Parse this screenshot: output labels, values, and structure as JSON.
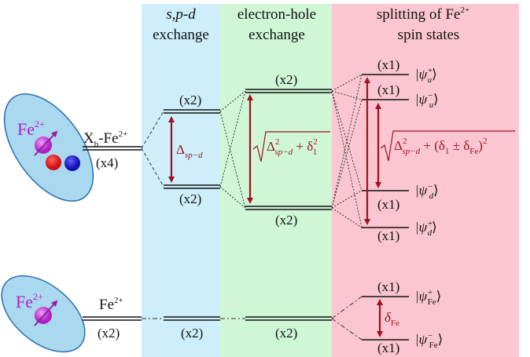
{
  "headers": [
    [
      "s,p-d",
      "exchange"
    ],
    [
      "electron-hole",
      "exchange"
    ],
    [
      "splitting of Fe",
      "2+",
      "spin states"
    ]
  ],
  "icons": [
    [
      "Fe",
      "2+"
    ],
    [
      "Fe",
      "2+"
    ]
  ],
  "levels": {
    "xb": {
      "name": [
        "X",
        "b",
        "-Fe",
        "2+"
      ],
      "degeneracy": "(x4)"
    },
    "fe": {
      "name": [
        "Fe",
        "2+"
      ],
      "degeneracy": "(x2)"
    },
    "spd_upper": "(x2)",
    "spd_lower": "(x2)",
    "eh_upper": "(x2)",
    "eh_lower": "(x2)",
    "spd_bottom": "(x2)",
    "eh_bottom": "(x2)"
  },
  "states": [
    {
      "degeneracy": "(x1)",
      "ket": [
        "|ψ",
        "+",
        "u",
        "⟩"
      ]
    },
    {
      "degeneracy": "(x1)",
      "ket": [
        "|ψ",
        "−",
        "u",
        "⟩"
      ]
    },
    {
      "degeneracy": "(x1)",
      "ket": [
        "|ψ",
        "−",
        "d",
        "⟩"
      ]
    },
    {
      "degeneracy": "(x1)",
      "ket": [
        "|ψ",
        "+",
        "d",
        "⟩"
      ]
    },
    {
      "degeneracy": "(x1)",
      "ket": [
        "|ψ",
        "+",
        "Fe",
        "⟩"
      ]
    },
    {
      "degeneracy": "(x1)",
      "ket": [
        "|ψ",
        "−",
        "Fe",
        "⟩"
      ]
    }
  ],
  "splittings": {
    "spd": [
      "Δ",
      "sp−d"
    ],
    "eh": [
      "Δ",
      "2",
      "sp−d",
      " + δ",
      "2",
      "1"
    ],
    "fe": [
      "Δ",
      "2",
      "sp−d",
      " + (δ",
      "1",
      " ± δ",
      "Fe",
      ")",
      "2"
    ],
    "fe_ion": [
      "δ",
      "Fe"
    ]
  }
}
